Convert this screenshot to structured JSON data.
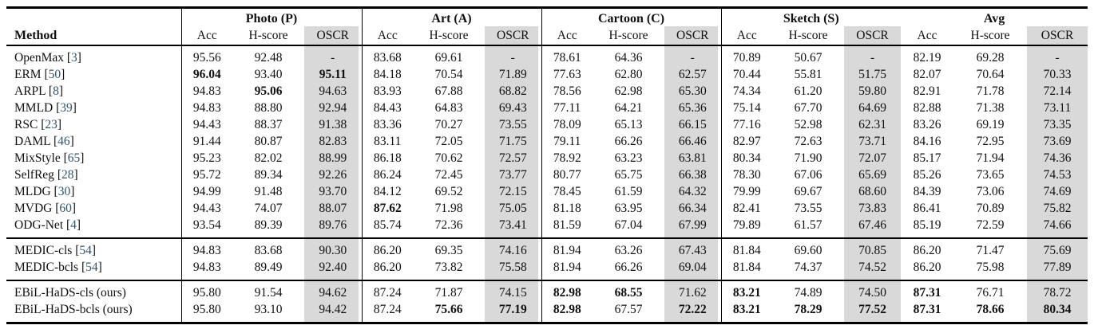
{
  "table": {
    "method_header": "Method",
    "groups": [
      "Photo (P)",
      "Art (A)",
      "Cartoon (C)",
      "Sketch (S)",
      "Avg"
    ],
    "sub_headers": [
      "Acc",
      "H-score",
      "OSCR"
    ],
    "colors": {
      "oscr_bg": "#d9d9d9",
      "citation": "#33536b"
    },
    "sections": [
      [
        {
          "method": "OpenMax",
          "cite": "3",
          "cells": [
            "95.56",
            "92.48",
            "-",
            "83.68",
            "69.61",
            "-",
            "78.61",
            "64.36",
            "-",
            "70.89",
            "50.67",
            "-",
            "82.19",
            "69.28",
            "-"
          ],
          "bold": []
        },
        {
          "method": "ERM",
          "cite": "50",
          "cells": [
            "96.04",
            "93.40",
            "95.11",
            "84.18",
            "70.54",
            "71.89",
            "77.63",
            "62.80",
            "62.57",
            "70.44",
            "55.81",
            "51.75",
            "82.07",
            "70.64",
            "70.33"
          ],
          "bold": [
            0,
            2
          ]
        },
        {
          "method": "ARPL",
          "cite": "8",
          "cells": [
            "94.83",
            "95.06",
            "94.63",
            "83.93",
            "67.88",
            "68.82",
            "78.56",
            "62.98",
            "65.30",
            "74.34",
            "61.20",
            "59.80",
            "82.91",
            "71.78",
            "72.14"
          ],
          "bold": [
            1
          ]
        },
        {
          "method": "MMLD",
          "cite": "39",
          "cells": [
            "94.83",
            "88.80",
            "92.94",
            "84.43",
            "64.83",
            "69.43",
            "77.11",
            "64.21",
            "65.36",
            "75.14",
            "67.70",
            "64.69",
            "82.88",
            "71.38",
            "73.11"
          ],
          "bold": []
        },
        {
          "method": "RSC",
          "cite": "23",
          "cells": [
            "94.43",
            "88.37",
            "91.38",
            "83.36",
            "70.27",
            "73.55",
            "78.09",
            "65.13",
            "66.15",
            "77.16",
            "52.98",
            "62.31",
            "83.26",
            "69.19",
            "73.35"
          ],
          "bold": []
        },
        {
          "method": "DAML",
          "cite": "46",
          "cells": [
            "91.44",
            "80.87",
            "82.83",
            "83.11",
            "72.05",
            "71.75",
            "79.11",
            "66.26",
            "66.46",
            "82.97",
            "72.63",
            "73.71",
            "84.16",
            "72.95",
            "73.69"
          ],
          "bold": []
        },
        {
          "method": "MixStyle",
          "cite": "65",
          "cells": [
            "95.23",
            "82.02",
            "88.99",
            "86.18",
            "70.62",
            "72.57",
            "78.92",
            "63.23",
            "63.81",
            "80.34",
            "71.90",
            "72.07",
            "85.17",
            "71.94",
            "74.36"
          ],
          "bold": []
        },
        {
          "method": "SelfReg",
          "cite": "28",
          "cells": [
            "95.72",
            "89.34",
            "92.26",
            "86.24",
            "72.45",
            "73.77",
            "80.77",
            "65.75",
            "66.38",
            "78.30",
            "67.06",
            "65.69",
            "85.26",
            "73.65",
            "74.53"
          ],
          "bold": []
        },
        {
          "method": "MLDG",
          "cite": "30",
          "cells": [
            "94.99",
            "91.48",
            "93.70",
            "84.12",
            "69.52",
            "72.15",
            "78.45",
            "61.59",
            "64.32",
            "79.99",
            "69.67",
            "68.60",
            "84.39",
            "73.06",
            "74.69"
          ],
          "bold": []
        },
        {
          "method": "MVDG",
          "cite": "60",
          "cells": [
            "94.43",
            "74.07",
            "88.07",
            "87.62",
            "71.98",
            "75.05",
            "81.18",
            "63.95",
            "66.34",
            "82.41",
            "73.55",
            "73.83",
            "86.41",
            "70.89",
            "75.82"
          ],
          "bold": [
            3
          ]
        },
        {
          "method": "ODG-Net",
          "cite": "4",
          "cells": [
            "93.54",
            "89.39",
            "89.76",
            "85.74",
            "72.36",
            "73.41",
            "81.59",
            "67.04",
            "67.99",
            "79.89",
            "61.57",
            "67.46",
            "85.19",
            "72.59",
            "74.66"
          ],
          "bold": []
        }
      ],
      [
        {
          "method": "MEDIC-cls",
          "cite": "54",
          "cells": [
            "94.83",
            "83.68",
            "90.30",
            "86.20",
            "69.35",
            "74.16",
            "81.94",
            "63.26",
            "67.43",
            "81.84",
            "69.60",
            "70.85",
            "86.20",
            "71.47",
            "75.69"
          ],
          "bold": []
        },
        {
          "method": "MEDIC-bcls",
          "cite": "54",
          "cells": [
            "94.83",
            "89.49",
            "92.40",
            "86.20",
            "73.82",
            "75.58",
            "81.94",
            "66.26",
            "69.04",
            "81.84",
            "74.37",
            "74.52",
            "86.20",
            "75.98",
            "77.89"
          ],
          "bold": []
        }
      ],
      [
        {
          "method": "EBiL-HaDS-cls (ours)",
          "cite": null,
          "cells": [
            "95.80",
            "91.54",
            "94.62",
            "87.24",
            "71.87",
            "74.15",
            "82.98",
            "68.55",
            "71.62",
            "83.21",
            "74.89",
            "74.50",
            "87.31",
            "76.71",
            "78.72"
          ],
          "bold": [
            6,
            7,
            9,
            12
          ]
        },
        {
          "method": "EBiL-HaDS-bcls (ours)",
          "cite": null,
          "cells": [
            "95.80",
            "93.10",
            "94.42",
            "87.24",
            "75.66",
            "77.19",
            "82.98",
            "67.57",
            "72.22",
            "83.21",
            "78.29",
            "77.52",
            "87.31",
            "78.66",
            "80.34"
          ],
          "bold": [
            4,
            5,
            6,
            8,
            9,
            10,
            11,
            12,
            13,
            14
          ]
        }
      ]
    ]
  }
}
